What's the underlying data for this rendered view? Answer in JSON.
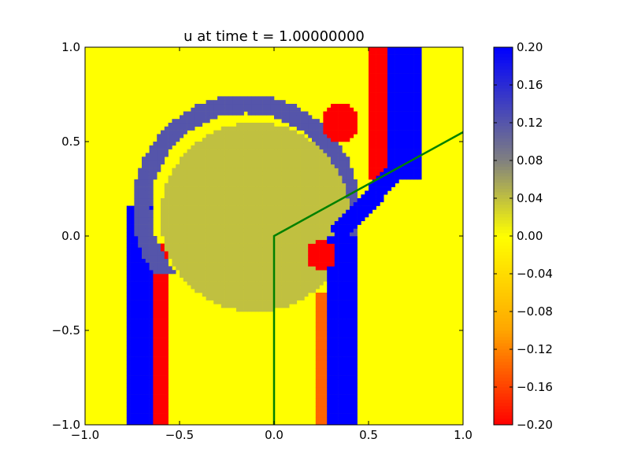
{
  "chart_data": {
    "type": "heatmap",
    "title": "u at time t =     1.00000000",
    "xlabel": "",
    "ylabel": "",
    "xlim": [
      -1.0,
      1.0
    ],
    "ylim": [
      -1.0,
      1.0
    ],
    "xticks": [
      -1.0,
      -0.5,
      0.0,
      0.5,
      1.0
    ],
    "xtick_labels": [
      "−1.0",
      "−0.5",
      "0.0",
      "0.5",
      "1.0"
    ],
    "yticks": [
      -1.0,
      -0.5,
      0.0,
      0.5,
      1.0
    ],
    "ytick_labels": [
      "−1.0",
      "−0.5",
      "0.0",
      "0.5",
      "1.0"
    ],
    "grid": false,
    "colorbar": {
      "range": [
        -0.2,
        0.2
      ],
      "ticks": [
        0.2,
        0.16,
        0.12,
        0.08,
        0.04,
        0.0,
        -0.04,
        -0.08,
        -0.12,
        -0.16,
        -0.2
      ],
      "tick_labels": [
        "0.20",
        "0.16",
        "0.12",
        "0.08",
        "0.04",
        "0.00",
        "−0.04",
        "−0.08",
        "−0.12",
        "−0.16",
        "−0.20"
      ],
      "colors": {
        "low": "#ff0000",
        "mid_low": "#ffa500",
        "zero": "#ffff00",
        "mid_high": "#808080",
        "high": "#0000ff"
      }
    },
    "field_features": [
      {
        "shape": "vertical-band",
        "x_range": [
          -0.78,
          -0.64
        ],
        "y_range": [
          -1.0,
          0.15
        ],
        "value": 0.2
      },
      {
        "shape": "vertical-band",
        "x_range": [
          -0.63,
          -0.57
        ],
        "y_range": [
          -1.0,
          -0.05
        ],
        "value": -0.2
      },
      {
        "shape": "ring",
        "center": [
          -0.15,
          0.15
        ],
        "inner_radius": 0.5,
        "outer_radius": 0.6,
        "value": 0.12
      },
      {
        "shape": "disk",
        "center": [
          -0.1,
          0.1
        ],
        "radius": 0.5,
        "value": 0.04
      },
      {
        "shape": "vertical-band",
        "x_range": [
          0.28,
          0.43
        ],
        "y_range": [
          -1.0,
          0.0
        ],
        "value": 0.2
      },
      {
        "shape": "vertical-band",
        "x_range": [
          0.21,
          0.27
        ],
        "y_range": [
          -1.0,
          -0.3
        ],
        "value": -0.14
      },
      {
        "shape": "vertical-band",
        "x_range": [
          0.6,
          0.77
        ],
        "y_range": [
          0.3,
          1.0
        ],
        "value": 0.2
      },
      {
        "shape": "vertical-band",
        "x_range": [
          0.5,
          0.6
        ],
        "y_range": [
          0.3,
          1.0
        ],
        "value": -0.2
      },
      {
        "shape": "diagonal-band",
        "from": [
          0.33,
          0.0
        ],
        "to": [
          0.65,
          0.35
        ],
        "width": 0.1,
        "value": 0.2
      },
      {
        "shape": "blob",
        "center": [
          0.25,
          -0.1
        ],
        "radius": 0.08,
        "value": -0.2
      },
      {
        "shape": "blob",
        "center": [
          0.35,
          0.6
        ],
        "radius": 0.1,
        "value": -0.2
      }
    ],
    "overlay_line": {
      "color": "#008000",
      "points": [
        [
          0.0,
          -1.0
        ],
        [
          0.0,
          0.0
        ],
        [
          1.0,
          0.55
        ]
      ]
    }
  }
}
